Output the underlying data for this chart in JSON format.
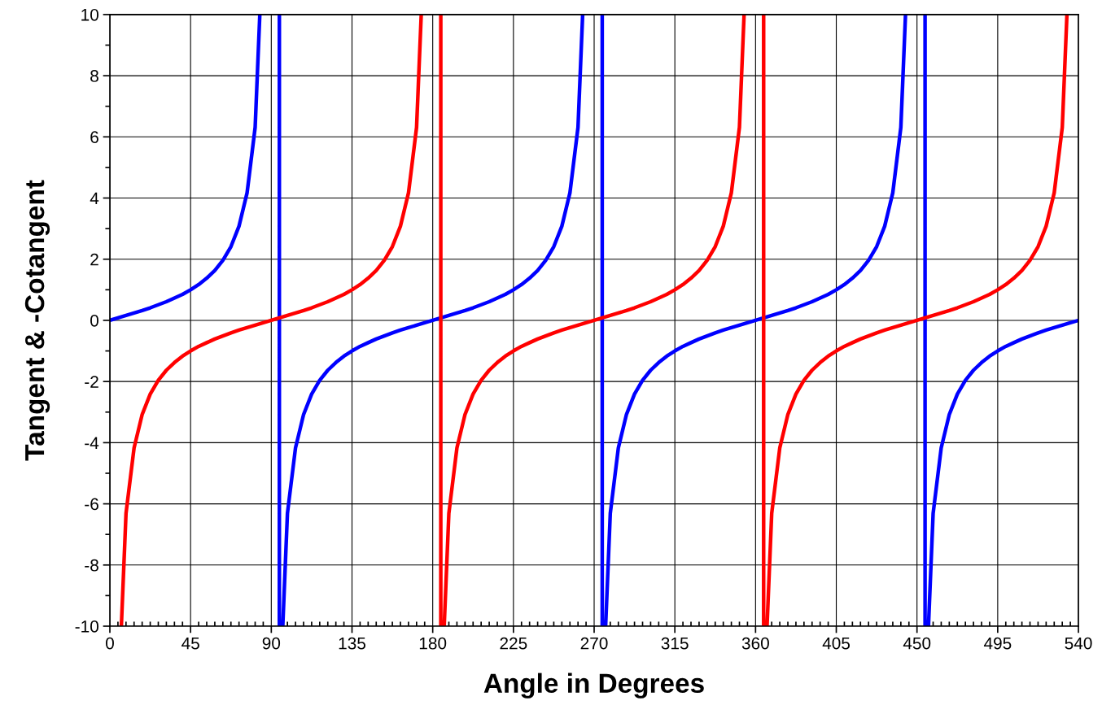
{
  "chart_data": {
    "type": "line",
    "xlabel": "Angle in Degrees",
    "ylabel": "Tangent & -Cotangent",
    "series": [
      {
        "color": "#0000ff",
        "x": [
          0,
          4.5,
          9,
          13.5,
          18,
          22.5,
          27,
          31.5,
          36,
          40.5,
          45,
          49.5,
          54,
          58.5,
          63,
          67.5,
          72,
          76.5,
          81,
          83.6,
          90,
          94.5,
          94.5,
          95.5,
          96.4,
          99,
          103.5,
          108,
          112.5,
          117,
          121.5,
          126,
          130.5,
          135,
          139.5,
          144,
          148.5,
          153,
          157.5,
          162,
          166.5,
          171,
          175.5,
          180,
          184.5,
          189,
          193.5,
          198,
          202.5,
          207,
          211.5,
          216,
          220.5,
          225,
          229.5,
          234,
          238.5,
          243,
          247.5,
          252,
          256.5,
          261,
          263.6,
          270,
          274.5,
          274.5,
          275.5,
          276.4,
          279,
          283.5,
          288,
          292.5,
          297,
          301.5,
          306,
          310.5,
          315,
          319.5,
          324,
          328.5,
          333,
          337.5,
          342,
          346.5,
          351,
          355.5,
          360,
          364.5,
          369,
          373.5,
          378,
          382.5,
          387,
          391.5,
          396,
          400.5,
          405,
          409.5,
          414,
          418.5,
          423,
          427.5,
          432,
          436.5,
          441,
          443.6,
          450,
          454.5,
          454.5,
          455.5,
          456.4,
          459,
          463.5,
          468,
          472.5,
          477,
          481.5,
          486,
          490.5,
          495,
          499.5,
          504,
          508.5,
          513,
          517.5,
          522,
          526.5,
          531,
          535.5,
          540
        ],
        "values": [
          0,
          0.08,
          0.16,
          0.24,
          0.32,
          0.41,
          0.51,
          0.61,
          0.73,
          0.85,
          1,
          1.17,
          1.38,
          1.63,
          1.96,
          2.41,
          3.08,
          4.17,
          6.31,
          10,
          null,
          10,
          -10,
          null,
          -10,
          -6.31,
          -4.17,
          -3.08,
          -2.41,
          -1.96,
          -1.63,
          -1.38,
          -1.17,
          -1,
          -0.85,
          -0.73,
          -0.61,
          -0.51,
          -0.41,
          -0.32,
          -0.24,
          -0.16,
          -0.08,
          0,
          0.08,
          0.16,
          0.24,
          0.32,
          0.41,
          0.51,
          0.61,
          0.73,
          0.85,
          1,
          1.17,
          1.38,
          1.63,
          1.96,
          2.41,
          3.08,
          4.17,
          6.31,
          10,
          null,
          10,
          -10,
          null,
          -10,
          -6.31,
          -4.17,
          -3.08,
          -2.41,
          -1.96,
          -1.63,
          -1.38,
          -1.17,
          -1,
          -0.85,
          -0.73,
          -0.61,
          -0.51,
          -0.41,
          -0.32,
          -0.24,
          -0.16,
          -0.08,
          0,
          0.08,
          0.16,
          0.24,
          0.32,
          0.41,
          0.51,
          0.61,
          0.73,
          0.85,
          1,
          1.17,
          1.38,
          1.63,
          1.96,
          2.41,
          3.08,
          4.17,
          6.31,
          10,
          null,
          10,
          -10,
          null,
          -10,
          -6.31,
          -4.17,
          -3.08,
          -2.41,
          -1.96,
          -1.63,
          -1.38,
          -1.17,
          -1,
          -0.85,
          -0.73,
          -0.61,
          -0.51,
          -0.41,
          -0.32,
          -0.24,
          -0.16,
          -0.08,
          0
        ]
      },
      {
        "color": "#ff0000",
        "x": [
          6.4,
          9,
          13.5,
          18,
          22.5,
          27,
          31.5,
          36,
          40.5,
          45,
          49.5,
          54,
          58.5,
          63,
          67.5,
          72,
          76.5,
          81,
          85.5,
          90,
          94.5,
          99,
          103.5,
          108,
          112.5,
          117,
          121.5,
          126,
          130.5,
          135,
          139.5,
          144,
          148.5,
          153,
          157.5,
          162,
          166.5,
          171,
          173.6,
          180,
          184.5,
          184.5,
          185.5,
          186.4,
          189,
          193.5,
          198,
          202.5,
          207,
          211.5,
          216,
          220.5,
          225,
          229.5,
          234,
          238.5,
          243,
          247.5,
          252,
          256.5,
          261,
          265.5,
          270,
          274.5,
          279,
          283.5,
          288,
          292.5,
          297,
          301.5,
          306,
          310.5,
          315,
          319.5,
          324,
          328.5,
          333,
          337.5,
          342,
          346.5,
          351,
          353.6,
          360,
          364.5,
          364.5,
          365.5,
          366.4,
          369,
          373.5,
          378,
          382.5,
          387,
          391.5,
          396,
          400.5,
          405,
          409.5,
          414,
          418.5,
          423,
          427.5,
          432,
          436.5,
          441,
          445.5,
          450,
          454.5,
          459,
          463.5,
          468,
          472.5,
          477,
          481.5,
          486,
          490.5,
          495,
          499.5,
          504,
          508.5,
          513,
          517.5,
          522,
          526.5,
          531,
          533.6
        ],
        "values": [
          -10,
          -6.31,
          -4.17,
          -3.08,
          -2.41,
          -1.96,
          -1.63,
          -1.38,
          -1.17,
          -1,
          -0.85,
          -0.73,
          -0.61,
          -0.51,
          -0.41,
          -0.32,
          -0.24,
          -0.16,
          -0.08,
          0,
          0.08,
          0.16,
          0.24,
          0.32,
          0.41,
          0.51,
          0.61,
          0.73,
          0.85,
          1,
          1.17,
          1.38,
          1.63,
          1.96,
          2.41,
          3.08,
          4.17,
          6.31,
          10,
          null,
          10,
          -10,
          null,
          -10,
          -6.31,
          -4.17,
          -3.08,
          -2.41,
          -1.96,
          -1.63,
          -1.38,
          -1.17,
          -1,
          -0.85,
          -0.73,
          -0.61,
          -0.51,
          -0.41,
          -0.32,
          -0.24,
          -0.16,
          -0.08,
          0,
          0.08,
          0.16,
          0.24,
          0.32,
          0.41,
          0.51,
          0.61,
          0.73,
          0.85,
          1,
          1.17,
          1.38,
          1.63,
          1.96,
          2.41,
          3.08,
          4.17,
          6.31,
          10,
          null,
          10,
          -10,
          null,
          -10,
          -6.31,
          -4.17,
          -3.08,
          -2.41,
          -1.96,
          -1.63,
          -1.38,
          -1.17,
          -1,
          -0.85,
          -0.73,
          -0.61,
          -0.51,
          -0.41,
          -0.32,
          -0.24,
          -0.16,
          -0.08,
          0,
          0.08,
          0.16,
          0.24,
          0.32,
          0.41,
          0.51,
          0.61,
          0.73,
          0.85,
          1,
          1.17,
          1.38,
          1.63,
          1.96,
          2.41,
          3.08,
          4.17,
          6.31,
          10
        ]
      }
    ],
    "xlim": [
      0,
      540
    ],
    "xticks": [
      0,
      45,
      90,
      135,
      180,
      225,
      270,
      315,
      360,
      405,
      450,
      495,
      540
    ],
    "ylim": [
      -10,
      10
    ],
    "yticks": [
      -10,
      -8,
      -6,
      -4,
      -2,
      0,
      2,
      4,
      6,
      8,
      10
    ],
    "grid": true,
    "marker": "none",
    "line_style": "solid",
    "legend": false
  }
}
